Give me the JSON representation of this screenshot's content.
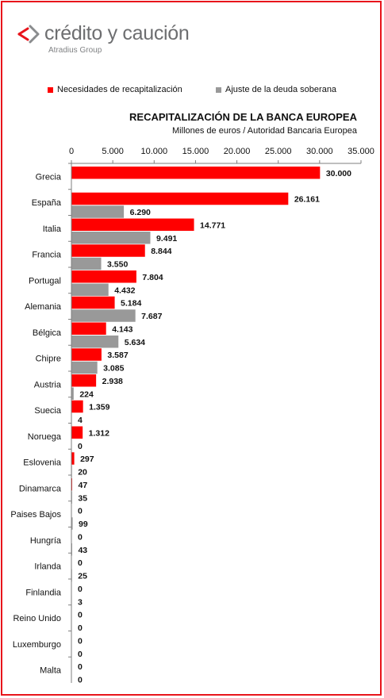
{
  "logo": {
    "name": "crédito y caución",
    "sub": "Atradius Group"
  },
  "colors": {
    "recap": "#ff0000",
    "deuda": "#999999",
    "frame": "#e8141b",
    "logo_mark": "#e8141b",
    "logo_text": "#6d6e70"
  },
  "chart_data": {
    "type": "bar",
    "orientation": "horizontal",
    "title": "RECAPITALIZACIÓN DE LA BANCA EUROPEA",
    "subtitle": "Millones de euros / Autoridad Bancaria Europea",
    "legend_position": "top",
    "grid": false,
    "xlim": [
      0,
      35000
    ],
    "ticks": [
      0,
      5000,
      10000,
      15000,
      20000,
      25000,
      30000,
      35000
    ],
    "tick_labels": [
      "0",
      "5.000",
      "10.000",
      "15.000",
      "20.000",
      "25.000",
      "30.000",
      "35.000"
    ],
    "categories": [
      "Grecia",
      "España",
      "Italia",
      "Francia",
      "Portugal",
      "Alemania",
      "Bélgica",
      "Chipre",
      "Austria",
      "Suecia",
      "Noruega",
      "Eslovenia",
      "Dinamarca",
      "Paises Bajos",
      "Hungría",
      "Irlanda",
      "Finlandia",
      "Reino Unido",
      "Luxemburgo",
      "Malta"
    ],
    "series": [
      {
        "name": "Necesidades de recapitalización",
        "values": [
          30000,
          26161,
          14771,
          8844,
          7804,
          5184,
          4143,
          3587,
          2938,
          1359,
          1312,
          297,
          47,
          0,
          0,
          0,
          0,
          0,
          0,
          0
        ],
        "labels": [
          "30.000",
          "26.161",
          "14.771",
          "8.844",
          "7.804",
          "5.184",
          "4.143",
          "3.587",
          "2.938",
          "1.359",
          "1.312",
          "297",
          "47",
          "0",
          "0",
          "0",
          "0",
          "0",
          "0",
          "0"
        ]
      },
      {
        "name": "Ajuste de la deuda soberana",
        "values": [
          null,
          6290,
          9491,
          3550,
          4432,
          7687,
          5634,
          3085,
          224,
          4,
          0,
          20,
          35,
          99,
          43,
          25,
          3,
          0,
          0,
          0
        ],
        "labels": [
          "",
          "6.290",
          "9.491",
          "3.550",
          "4.432",
          "7.687",
          "5.634",
          "3.085",
          "224",
          "4",
          "0",
          "20",
          "35",
          "99",
          "43",
          "25",
          "3",
          "0",
          "0",
          "0"
        ]
      }
    ]
  }
}
